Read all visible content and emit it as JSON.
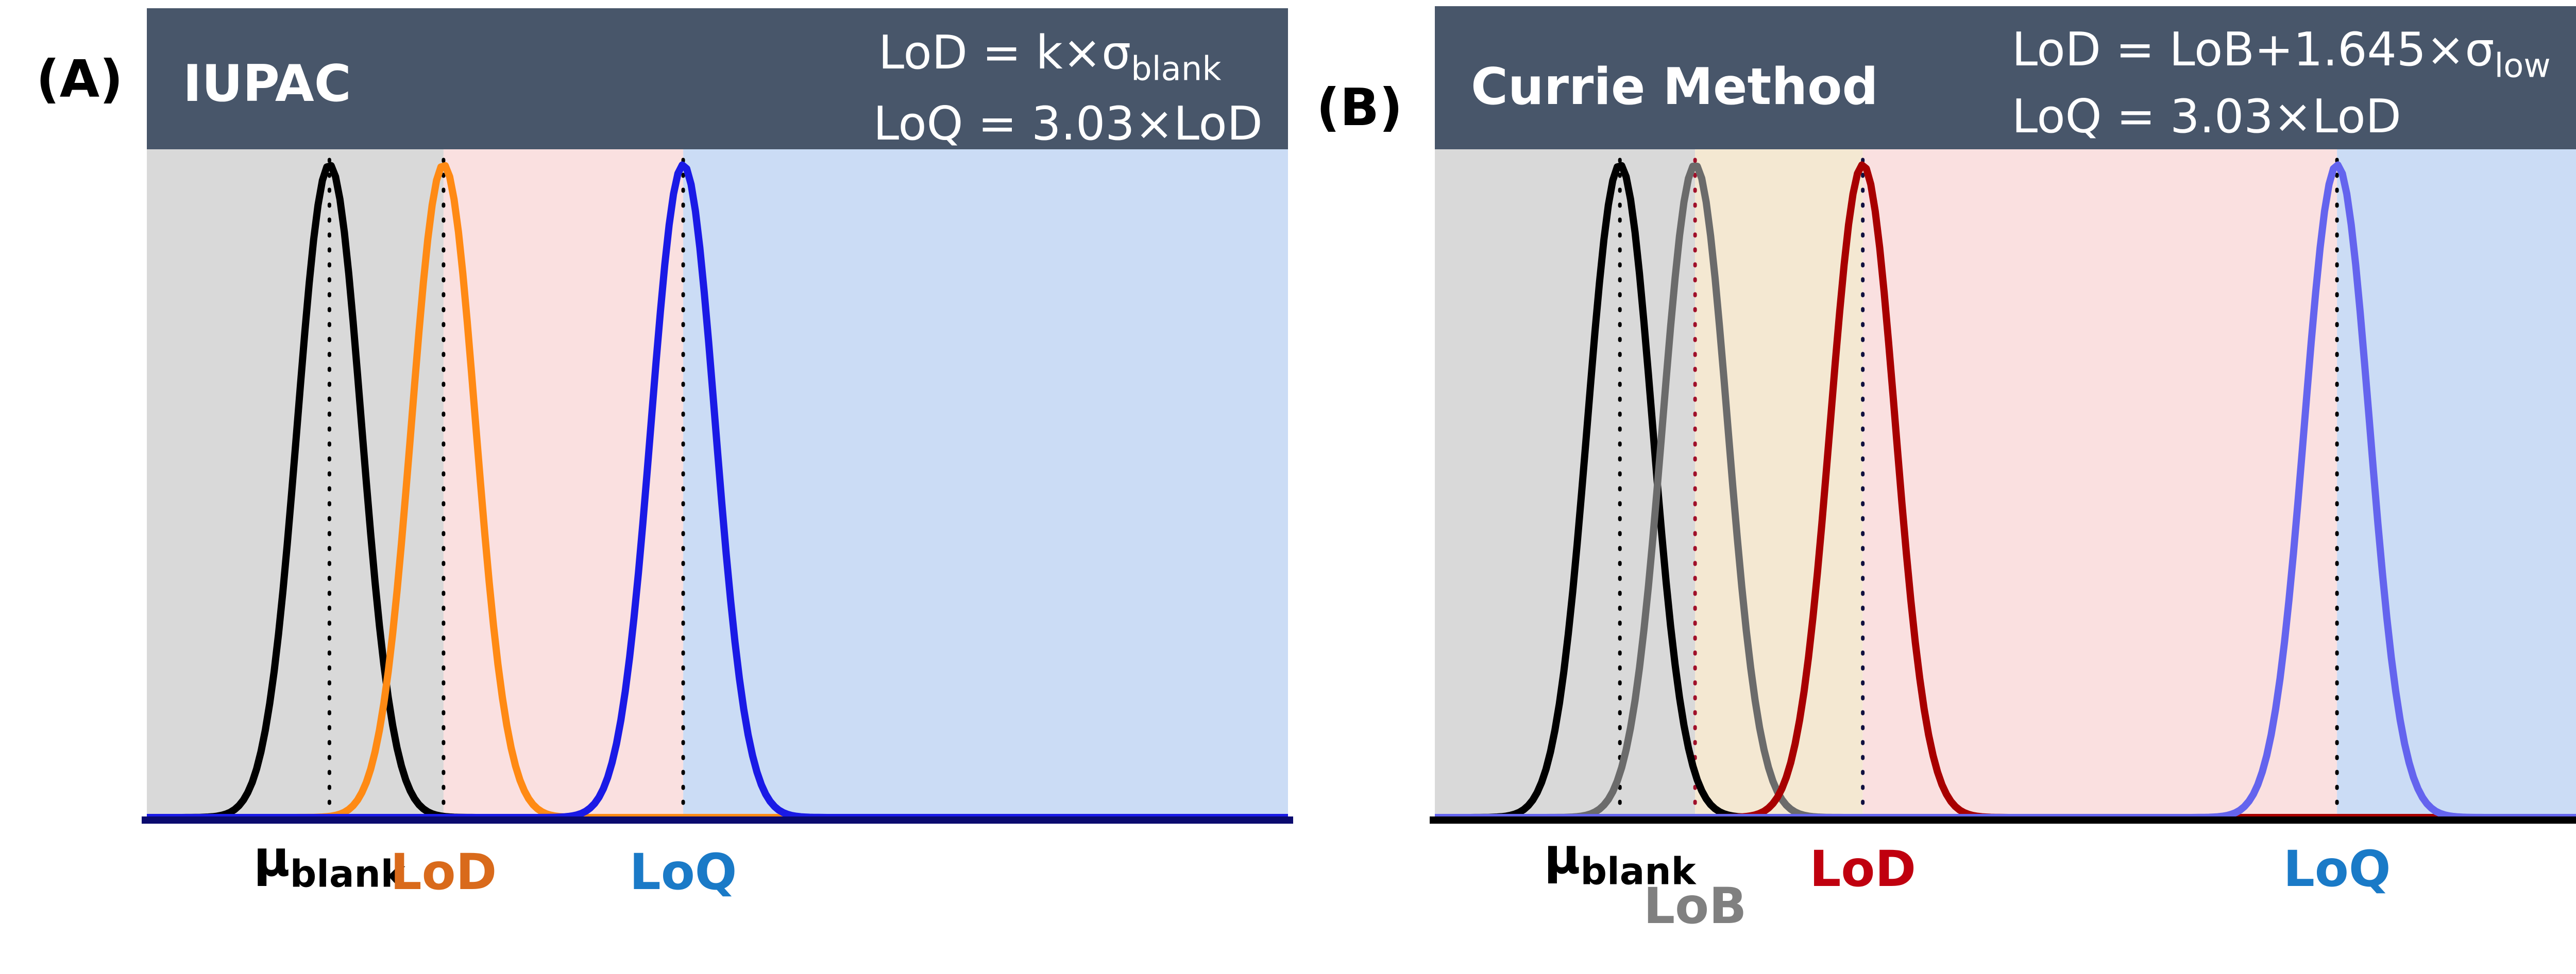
{
  "panels": [
    {
      "letter": "(A)",
      "title": "IUPAC",
      "formula_lod": {
        "text": "LoD = k×σ",
        "sub": "blank"
      },
      "formula_loq": {
        "text": "LoQ = 3.03×LoD"
      },
      "labels": {
        "mu": {
          "text": "μ",
          "sub": "blank",
          "color": "#000000"
        },
        "lod": {
          "text": "LoD",
          "color": "#d96a1b"
        },
        "loq": {
          "text": "LoQ",
          "color": "#1a7ac7"
        }
      }
    },
    {
      "letter": "(B)",
      "title": "Currie Method",
      "formula_lod": {
        "text": "LoD = LoB+1.645×σ",
        "sub": "low"
      },
      "formula_loq": {
        "text": "LoQ = 3.03×LoD"
      },
      "labels": {
        "mu": {
          "text": "μ",
          "sub": "blank",
          "color": "#000000"
        },
        "lob": {
          "text": "LoB",
          "color": "#808080"
        },
        "lod": {
          "text": "LoD",
          "color": "#c0000f"
        },
        "loq": {
          "text": "LoQ",
          "color": "#1a7ac7"
        }
      }
    }
  ],
  "chart_data": [
    {
      "type": "line",
      "title": "IUPAC",
      "description_units": "arbitrary signal units (axis unlabeled)",
      "xlim": [
        0,
        10
      ],
      "series": [
        {
          "name": "blank",
          "mean": 1.6,
          "sd": 0.28,
          "color": "#000000"
        },
        {
          "name": "LoD",
          "mean": 2.6,
          "sd": 0.28,
          "color": "#ff8a14"
        },
        {
          "name": "LoQ",
          "mean": 4.7,
          "sd": 0.28,
          "color": "#1a1ae6"
        }
      ],
      "markers": [
        {
          "name": "μblank",
          "x": 1.6
        },
        {
          "name": "LoD",
          "x": 2.6
        },
        {
          "name": "LoQ",
          "x": 4.7
        }
      ],
      "regions": [
        {
          "from": 0,
          "to": 2.6,
          "color": "#d9d9d9"
        },
        {
          "from": 2.6,
          "to": 4.7,
          "color": "#fae0e0"
        },
        {
          "from": 4.7,
          "to": 10,
          "color": "#cbdcf5"
        }
      ]
    },
    {
      "type": "line",
      "title": "Currie Method",
      "description_units": "arbitrary signal units (axis unlabeled)",
      "xlim": [
        0,
        10
      ],
      "series": [
        {
          "name": "blank",
          "mean": 1.6,
          "sd": 0.28,
          "color": "#000000"
        },
        {
          "name": "LoB",
          "mean": 2.25,
          "sd": 0.28,
          "color": "#6b6b6b"
        },
        {
          "name": "LoD",
          "mean": 3.7,
          "sd": 0.28,
          "color": "#a80000"
        },
        {
          "name": "LoQ",
          "mean": 7.8,
          "sd": 0.28,
          "color": "#6464ee"
        }
      ],
      "markers": [
        {
          "name": "μblank",
          "x": 1.6,
          "color": "#000000"
        },
        {
          "name": "LoB",
          "x": 2.25,
          "color": "#a0102a"
        },
        {
          "name": "LoD",
          "x": 3.7,
          "color": "#101040"
        },
        {
          "name": "LoQ",
          "x": 7.8,
          "color": "#000000"
        }
      ],
      "regions": [
        {
          "from": 0,
          "to": 2.25,
          "color": "#d9d9d9"
        },
        {
          "from": 2.25,
          "to": 3.7,
          "color": "#f4e8d2"
        },
        {
          "from": 3.7,
          "to": 7.8,
          "color": "#fae0e0"
        },
        {
          "from": 7.8,
          "to": 10,
          "color": "#cbdcf5"
        }
      ]
    }
  ]
}
